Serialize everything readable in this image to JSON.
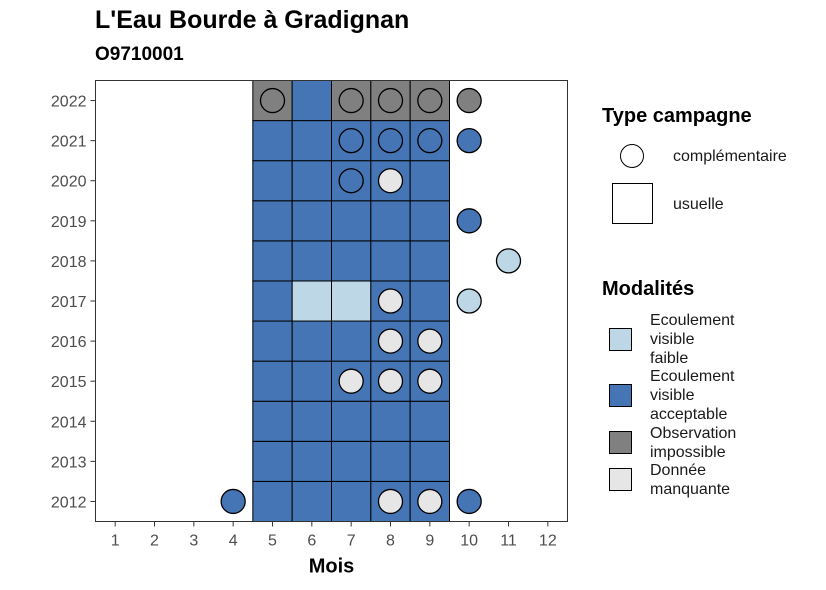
{
  "chart_data": {
    "type": "heatmap",
    "title": "L'Eau Bourde à Gradignan",
    "subtitle": "O9710001",
    "xlabel": "Mois",
    "ylabel": "",
    "x_ticks": [
      1,
      2,
      3,
      4,
      5,
      6,
      7,
      8,
      9,
      10,
      11,
      12
    ],
    "y_ticks": [
      2012,
      2013,
      2014,
      2015,
      2016,
      2017,
      2018,
      2019,
      2020,
      2021,
      2022
    ],
    "xlim": [
      0.5,
      12.5
    ],
    "ylim": [
      2011.5,
      2022.5
    ],
    "grid": false,
    "legend_position": "right",
    "legend_shape": {
      "title": "Type campagne",
      "items": [
        {
          "label": "complémentaire",
          "shape": "circle"
        },
        {
          "label": "usuelle",
          "shape": "square"
        }
      ]
    },
    "legend_color": {
      "title": "Modalités",
      "items": [
        {
          "label": "Ecoulement visible faible",
          "lines": [
            "Ecoulement",
            "visible",
            "faible"
          ],
          "color": "#bdd7e7"
        },
        {
          "label": "Ecoulement visible acceptable",
          "lines": [
            "Ecoulement",
            "visible",
            "acceptable"
          ],
          "color": "#4575b4"
        },
        {
          "label": "Observation impossible",
          "lines": [
            "Observation",
            "impossible"
          ],
          "color": "#808080"
        },
        {
          "label": "Donnée manquante",
          "lines": [
            "Donnée",
            "manquante"
          ],
          "color": "#e6e6e6"
        }
      ]
    },
    "usuelle": [
      {
        "year": 2012,
        "month": 5,
        "modalite": "Ecoulement visible acceptable"
      },
      {
        "year": 2012,
        "month": 6,
        "modalite": "Ecoulement visible acceptable"
      },
      {
        "year": 2012,
        "month": 7,
        "modalite": "Ecoulement visible acceptable"
      },
      {
        "year": 2012,
        "month": 8,
        "modalite": "Ecoulement visible acceptable"
      },
      {
        "year": 2012,
        "month": 9,
        "modalite": "Ecoulement visible acceptable"
      },
      {
        "year": 2013,
        "month": 5,
        "modalite": "Ecoulement visible acceptable"
      },
      {
        "year": 2013,
        "month": 6,
        "modalite": "Ecoulement visible acceptable"
      },
      {
        "year": 2013,
        "month": 7,
        "modalite": "Ecoulement visible acceptable"
      },
      {
        "year": 2013,
        "month": 8,
        "modalite": "Ecoulement visible acceptable"
      },
      {
        "year": 2013,
        "month": 9,
        "modalite": "Ecoulement visible acceptable"
      },
      {
        "year": 2014,
        "month": 5,
        "modalite": "Ecoulement visible acceptable"
      },
      {
        "year": 2014,
        "month": 6,
        "modalite": "Ecoulement visible acceptable"
      },
      {
        "year": 2014,
        "month": 7,
        "modalite": "Ecoulement visible acceptable"
      },
      {
        "year": 2014,
        "month": 8,
        "modalite": "Ecoulement visible acceptable"
      },
      {
        "year": 2014,
        "month": 9,
        "modalite": "Ecoulement visible acceptable"
      },
      {
        "year": 2015,
        "month": 5,
        "modalite": "Ecoulement visible acceptable"
      },
      {
        "year": 2015,
        "month": 6,
        "modalite": "Ecoulement visible acceptable"
      },
      {
        "year": 2015,
        "month": 7,
        "modalite": "Ecoulement visible acceptable"
      },
      {
        "year": 2015,
        "month": 8,
        "modalite": "Ecoulement visible acceptable"
      },
      {
        "year": 2015,
        "month": 9,
        "modalite": "Ecoulement visible acceptable"
      },
      {
        "year": 2016,
        "month": 5,
        "modalite": "Ecoulement visible acceptable"
      },
      {
        "year": 2016,
        "month": 6,
        "modalite": "Ecoulement visible acceptable"
      },
      {
        "year": 2016,
        "month": 7,
        "modalite": "Ecoulement visible acceptable"
      },
      {
        "year": 2016,
        "month": 8,
        "modalite": "Ecoulement visible acceptable"
      },
      {
        "year": 2016,
        "month": 9,
        "modalite": "Ecoulement visible acceptable"
      },
      {
        "year": 2017,
        "month": 5,
        "modalite": "Ecoulement visible acceptable"
      },
      {
        "year": 2017,
        "month": 6,
        "modalite": "Ecoulement visible faible"
      },
      {
        "year": 2017,
        "month": 7,
        "modalite": "Ecoulement visible faible"
      },
      {
        "year": 2017,
        "month": 8,
        "modalite": "Ecoulement visible acceptable"
      },
      {
        "year": 2017,
        "month": 9,
        "modalite": "Ecoulement visible acceptable"
      },
      {
        "year": 2018,
        "month": 5,
        "modalite": "Ecoulement visible acceptable"
      },
      {
        "year": 2018,
        "month": 6,
        "modalite": "Ecoulement visible acceptable"
      },
      {
        "year": 2018,
        "month": 7,
        "modalite": "Ecoulement visible acceptable"
      },
      {
        "year": 2018,
        "month": 8,
        "modalite": "Ecoulement visible acceptable"
      },
      {
        "year": 2018,
        "month": 9,
        "modalite": "Ecoulement visible acceptable"
      },
      {
        "year": 2019,
        "month": 5,
        "modalite": "Ecoulement visible acceptable"
      },
      {
        "year": 2019,
        "month": 6,
        "modalite": "Ecoulement visible acceptable"
      },
      {
        "year": 2019,
        "month": 7,
        "modalite": "Ecoulement visible acceptable"
      },
      {
        "year": 2019,
        "month": 8,
        "modalite": "Ecoulement visible acceptable"
      },
      {
        "year": 2019,
        "month": 9,
        "modalite": "Ecoulement visible acceptable"
      },
      {
        "year": 2020,
        "month": 5,
        "modalite": "Ecoulement visible acceptable"
      },
      {
        "year": 2020,
        "month": 6,
        "modalite": "Ecoulement visible acceptable"
      },
      {
        "year": 2020,
        "month": 7,
        "modalite": "Ecoulement visible acceptable"
      },
      {
        "year": 2020,
        "month": 8,
        "modalite": "Ecoulement visible acceptable"
      },
      {
        "year": 2020,
        "month": 9,
        "modalite": "Ecoulement visible acceptable"
      },
      {
        "year": 2021,
        "month": 5,
        "modalite": "Ecoulement visible acceptable"
      },
      {
        "year": 2021,
        "month": 6,
        "modalite": "Ecoulement visible acceptable"
      },
      {
        "year": 2021,
        "month": 7,
        "modalite": "Ecoulement visible acceptable"
      },
      {
        "year": 2021,
        "month": 8,
        "modalite": "Ecoulement visible acceptable"
      },
      {
        "year": 2021,
        "month": 9,
        "modalite": "Ecoulement visible acceptable"
      },
      {
        "year": 2022,
        "month": 5,
        "modalite": "Observation impossible"
      },
      {
        "year": 2022,
        "month": 6,
        "modalite": "Ecoulement visible acceptable"
      },
      {
        "year": 2022,
        "month": 7,
        "modalite": "Observation impossible"
      },
      {
        "year": 2022,
        "month": 8,
        "modalite": "Observation impossible"
      },
      {
        "year": 2022,
        "month": 9,
        "modalite": "Observation impossible"
      }
    ],
    "complementaire": [
      {
        "year": 2012,
        "month": 4,
        "modalite": "Ecoulement visible acceptable"
      },
      {
        "year": 2012,
        "month": 8,
        "modalite": "Donnée manquante"
      },
      {
        "year": 2012,
        "month": 9,
        "modalite": "Donnée manquante"
      },
      {
        "year": 2012,
        "month": 10,
        "modalite": "Ecoulement visible acceptable"
      },
      {
        "year": 2015,
        "month": 7,
        "modalite": "Donnée manquante"
      },
      {
        "year": 2015,
        "month": 8,
        "modalite": "Donnée manquante"
      },
      {
        "year": 2015,
        "month": 9,
        "modalite": "Donnée manquante"
      },
      {
        "year": 2016,
        "month": 8,
        "modalite": "Donnée manquante"
      },
      {
        "year": 2016,
        "month": 9,
        "modalite": "Donnée manquante"
      },
      {
        "year": 2017,
        "month": 8,
        "modalite": "Donnée manquante"
      },
      {
        "year": 2017,
        "month": 10,
        "modalite": "Ecoulement visible faible"
      },
      {
        "year": 2018,
        "month": 11,
        "modalite": "Ecoulement visible faible"
      },
      {
        "year": 2019,
        "month": 10,
        "modalite": "Ecoulement visible acceptable"
      },
      {
        "year": 2020,
        "month": 7,
        "modalite": "Ecoulement visible acceptable"
      },
      {
        "year": 2020,
        "month": 8,
        "modalite": "Donnée manquante"
      },
      {
        "year": 2021,
        "month": 7,
        "modalite": "Ecoulement visible acceptable"
      },
      {
        "year": 2021,
        "month": 8,
        "modalite": "Ecoulement visible acceptable"
      },
      {
        "year": 2021,
        "month": 9,
        "modalite": "Ecoulement visible acceptable"
      },
      {
        "year": 2021,
        "month": 10,
        "modalite": "Ecoulement visible acceptable"
      },
      {
        "year": 2022,
        "month": 5,
        "modalite": "Observation impossible"
      },
      {
        "year": 2022,
        "month": 7,
        "modalite": "Observation impossible"
      },
      {
        "year": 2022,
        "month": 8,
        "modalite": "Observation impossible"
      },
      {
        "year": 2022,
        "month": 9,
        "modalite": "Observation impossible"
      },
      {
        "year": 2022,
        "month": 10,
        "modalite": "Observation impossible"
      }
    ]
  }
}
